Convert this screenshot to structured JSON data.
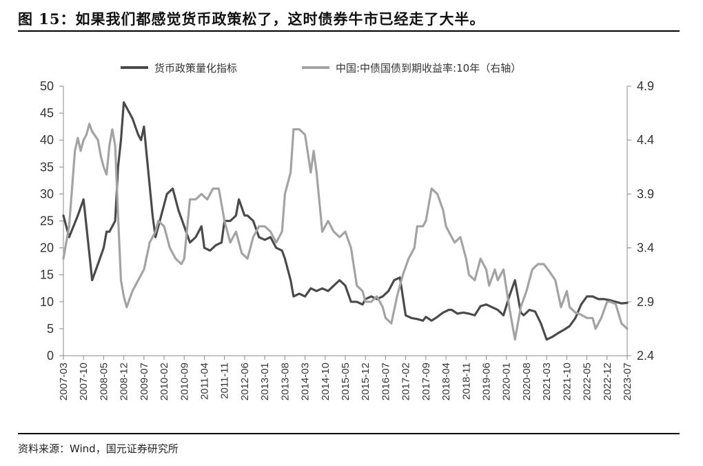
{
  "figure": {
    "title": "图 15：如果我们都感觉货币政策松了，这时债券牛市已经走了大半。",
    "source": "资料来源：Wind，国元证券研究所"
  },
  "chart_data": {
    "type": "line",
    "legend_position": "top",
    "grid": false,
    "x_tick_labels": [
      "2007-03",
      "2007-10",
      "2008-05",
      "2008-12",
      "2009-07",
      "2010-02",
      "2010-09",
      "2011-04",
      "2011-11",
      "2012-06",
      "2013-01",
      "2013-08",
      "2014-03",
      "2014-10",
      "2015-05",
      "2015-12",
      "2016-07",
      "2017-02",
      "2017-09",
      "2018-04",
      "2018-11",
      "2019-06",
      "2020-01",
      "2020-08",
      "2021-03",
      "2021-10",
      "2022-05",
      "2022-12",
      "2023-07"
    ],
    "y_left": {
      "ticks": [
        "0",
        "5",
        "10",
        "15",
        "20",
        "25",
        "30",
        "35",
        "40",
        "45",
        "50"
      ],
      "range": [
        0,
        50
      ]
    },
    "y_right": {
      "ticks": [
        "2.4",
        "2.9",
        "3.4",
        "3.9",
        "4.4",
        "4.9"
      ],
      "range": [
        2.4,
        4.9
      ]
    },
    "series": [
      {
        "name": "货币政策量化指标",
        "axis": "left",
        "color": "#4a4a4a",
        "points": [
          [
            "2007-03",
            26
          ],
          [
            "2007-05",
            22
          ],
          [
            "2007-08",
            26
          ],
          [
            "2007-10",
            29
          ],
          [
            "2007-12",
            19
          ],
          [
            "2008-01",
            14
          ],
          [
            "2008-03",
            17
          ],
          [
            "2008-05",
            20
          ],
          [
            "2008-06",
            23
          ],
          [
            "2008-07",
            23
          ],
          [
            "2008-09",
            25
          ],
          [
            "2008-10",
            35
          ],
          [
            "2008-11",
            40
          ],
          [
            "2008-12",
            47
          ],
          [
            "2009-01",
            46
          ],
          [
            "2009-03",
            44
          ],
          [
            "2009-05",
            41
          ],
          [
            "2009-06",
            40
          ],
          [
            "2009-07",
            42.5
          ],
          [
            "2009-08",
            37
          ],
          [
            "2009-10",
            26
          ],
          [
            "2009-11",
            22
          ],
          [
            "2010-01",
            26
          ],
          [
            "2010-02",
            28
          ],
          [
            "2010-03",
            30
          ],
          [
            "2010-05",
            31
          ],
          [
            "2010-07",
            27
          ],
          [
            "2010-09",
            24
          ],
          [
            "2010-11",
            21
          ],
          [
            "2011-01",
            22
          ],
          [
            "2011-03",
            24
          ],
          [
            "2011-04",
            20
          ],
          [
            "2011-06",
            19.5
          ],
          [
            "2011-08",
            20.5
          ],
          [
            "2011-10",
            21
          ],
          [
            "2011-11",
            25
          ],
          [
            "2012-01",
            25
          ],
          [
            "2012-03",
            26
          ],
          [
            "2012-04",
            29
          ],
          [
            "2012-06",
            26
          ],
          [
            "2012-07",
            26
          ],
          [
            "2012-09",
            25
          ],
          [
            "2012-11",
            22
          ],
          [
            "2013-01",
            21.5
          ],
          [
            "2013-03",
            22
          ],
          [
            "2013-05",
            20
          ],
          [
            "2013-07",
            19.5
          ],
          [
            "2013-08",
            18
          ],
          [
            "2013-10",
            14
          ],
          [
            "2013-11",
            11
          ],
          [
            "2014-01",
            11.5
          ],
          [
            "2014-03",
            11
          ],
          [
            "2014-05",
            12.5
          ],
          [
            "2014-07",
            12
          ],
          [
            "2014-09",
            12.5
          ],
          [
            "2014-11",
            12
          ],
          [
            "2015-01",
            13
          ],
          [
            "2015-03",
            14
          ],
          [
            "2015-05",
            13
          ],
          [
            "2015-07",
            10
          ],
          [
            "2015-09",
            10
          ],
          [
            "2015-11",
            9.5
          ],
          [
            "2015-12",
            10.5
          ],
          [
            "2016-02",
            11
          ],
          [
            "2016-04",
            10.5
          ],
          [
            "2016-06",
            11
          ],
          [
            "2016-08",
            12
          ],
          [
            "2016-10",
            14
          ],
          [
            "2016-12",
            14.5
          ],
          [
            "2017-02",
            7.5
          ],
          [
            "2017-04",
            7
          ],
          [
            "2017-06",
            6.8
          ],
          [
            "2017-08",
            6.5
          ],
          [
            "2017-09",
            7.2
          ],
          [
            "2017-11",
            6.5
          ],
          [
            "2018-01",
            7.2
          ],
          [
            "2018-03",
            8
          ],
          [
            "2018-05",
            8.5
          ],
          [
            "2018-06",
            8.5
          ],
          [
            "2018-08",
            7.8
          ],
          [
            "2018-10",
            8
          ],
          [
            "2018-12",
            7.8
          ],
          [
            "2019-02",
            7.5
          ],
          [
            "2019-04",
            9.2
          ],
          [
            "2019-06",
            9.5
          ],
          [
            "2019-08",
            9
          ],
          [
            "2019-10",
            8.5
          ],
          [
            "2019-12",
            7.5
          ],
          [
            "2020-02",
            11
          ],
          [
            "2020-04",
            14
          ],
          [
            "2020-06",
            8
          ],
          [
            "2020-07",
            7.5
          ],
          [
            "2020-09",
            8.5
          ],
          [
            "2020-11",
            8.2
          ],
          [
            "2021-01",
            6
          ],
          [
            "2021-03",
            3
          ],
          [
            "2021-05",
            3.5
          ],
          [
            "2021-07",
            4.2
          ],
          [
            "2021-09",
            4.8
          ],
          [
            "2021-11",
            5.5
          ],
          [
            "2022-01",
            7
          ],
          [
            "2022-03",
            9.5
          ],
          [
            "2022-05",
            11
          ],
          [
            "2022-07",
            11
          ],
          [
            "2022-09",
            10.5
          ],
          [
            "2022-11",
            10.5
          ],
          [
            "2023-01",
            10.3
          ],
          [
            "2023-03",
            10
          ],
          [
            "2023-05",
            9.7
          ],
          [
            "2023-07",
            9.8
          ]
        ]
      },
      {
        "name": "中国:中债国债到期收益率:10年（右轴）",
        "axis": "right",
        "color": "#a3a3a3",
        "points": [
          [
            "2007-03",
            3.3
          ],
          [
            "2007-05",
            3.6
          ],
          [
            "2007-07",
            4.3
          ],
          [
            "2007-08",
            4.42
          ],
          [
            "2007-09",
            4.3
          ],
          [
            "2007-10",
            4.4
          ],
          [
            "2007-11",
            4.45
          ],
          [
            "2007-12",
            4.55
          ],
          [
            "2008-01",
            4.48
          ],
          [
            "2008-03",
            4.4
          ],
          [
            "2008-04",
            4.25
          ],
          [
            "2008-05",
            4.15
          ],
          [
            "2008-06",
            4.08
          ],
          [
            "2008-07",
            4.35
          ],
          [
            "2008-08",
            4.5
          ],
          [
            "2008-09",
            4.35
          ],
          [
            "2008-10",
            3.7
          ],
          [
            "2008-11",
            3.1
          ],
          [
            "2008-12",
            2.95
          ],
          [
            "2009-01",
            2.85
          ],
          [
            "2009-03",
            3
          ],
          [
            "2009-05",
            3.1
          ],
          [
            "2009-07",
            3.2
          ],
          [
            "2009-09",
            3.45
          ],
          [
            "2009-11",
            3.55
          ],
          [
            "2009-12",
            3.65
          ],
          [
            "2010-02",
            3.6
          ],
          [
            "2010-04",
            3.4
          ],
          [
            "2010-06",
            3.3
          ],
          [
            "2010-08",
            3.25
          ],
          [
            "2010-09",
            3.3
          ],
          [
            "2010-11",
            3.85
          ],
          [
            "2011-01",
            3.85
          ],
          [
            "2011-03",
            3.9
          ],
          [
            "2011-05",
            3.85
          ],
          [
            "2011-07",
            3.95
          ],
          [
            "2011-09",
            3.95
          ],
          [
            "2011-11",
            3.65
          ],
          [
            "2012-01",
            3.45
          ],
          [
            "2012-03",
            3.55
          ],
          [
            "2012-05",
            3.35
          ],
          [
            "2012-07",
            3.3
          ],
          [
            "2012-09",
            3.5
          ],
          [
            "2012-11",
            3.6
          ],
          [
            "2013-01",
            3.6
          ],
          [
            "2013-03",
            3.55
          ],
          [
            "2013-05",
            3.45
          ],
          [
            "2013-07",
            3.55
          ],
          [
            "2013-08",
            3.9
          ],
          [
            "2013-10",
            4.1
          ],
          [
            "2013-11",
            4.5
          ],
          [
            "2014-01",
            4.5
          ],
          [
            "2014-03",
            4.45
          ],
          [
            "2014-05",
            4.1
          ],
          [
            "2014-06",
            4.3
          ],
          [
            "2014-07",
            4.1
          ],
          [
            "2014-09",
            3.55
          ],
          [
            "2014-11",
            3.65
          ],
          [
            "2015-01",
            3.55
          ],
          [
            "2015-03",
            3.5
          ],
          [
            "2015-05",
            3.55
          ],
          [
            "2015-07",
            3.4
          ],
          [
            "2015-09",
            3.05
          ],
          [
            "2015-11",
            3
          ],
          [
            "2015-12",
            2.9
          ],
          [
            "2016-02",
            2.9
          ],
          [
            "2016-04",
            2.95
          ],
          [
            "2016-06",
            2.85
          ],
          [
            "2016-07",
            2.75
          ],
          [
            "2016-09",
            2.7
          ],
          [
            "2016-11",
            2.95
          ],
          [
            "2017-01",
            3.15
          ],
          [
            "2017-03",
            3.3
          ],
          [
            "2017-05",
            3.4
          ],
          [
            "2017-06",
            3.6
          ],
          [
            "2017-08",
            3.6
          ],
          [
            "2017-09",
            3.65
          ],
          [
            "2017-11",
            3.95
          ],
          [
            "2018-01",
            3.9
          ],
          [
            "2018-03",
            3.75
          ],
          [
            "2018-04",
            3.6
          ],
          [
            "2018-05",
            3.55
          ],
          [
            "2018-07",
            3.45
          ],
          [
            "2018-09",
            3.5
          ],
          [
            "2018-11",
            3.3
          ],
          [
            "2018-12",
            3.15
          ],
          [
            "2019-02",
            3.1
          ],
          [
            "2019-04",
            3.3
          ],
          [
            "2019-06",
            3.2
          ],
          [
            "2019-07",
            3.05
          ],
          [
            "2019-09",
            3.2
          ],
          [
            "2019-10",
            3.1
          ],
          [
            "2019-12",
            3.2
          ],
          [
            "2020-02",
            2.85
          ],
          [
            "2020-04",
            2.55
          ],
          [
            "2020-06",
            2.85
          ],
          [
            "2020-08",
            3
          ],
          [
            "2020-10",
            3.2
          ],
          [
            "2020-12",
            3.25
          ],
          [
            "2021-02",
            3.25
          ],
          [
            "2021-04",
            3.18
          ],
          [
            "2021-06",
            3.1
          ],
          [
            "2021-08",
            2.85
          ],
          [
            "2021-10",
            3
          ],
          [
            "2021-11",
            2.85
          ],
          [
            "2022-01",
            2.8
          ],
          [
            "2022-03",
            2.78
          ],
          [
            "2022-05",
            2.75
          ],
          [
            "2022-07",
            2.75
          ],
          [
            "2022-08",
            2.65
          ],
          [
            "2022-10",
            2.75
          ],
          [
            "2022-12",
            2.9
          ],
          [
            "2023-01",
            2.9
          ],
          [
            "2023-03",
            2.88
          ],
          [
            "2023-05",
            2.7
          ],
          [
            "2023-07",
            2.65
          ]
        ]
      }
    ]
  }
}
